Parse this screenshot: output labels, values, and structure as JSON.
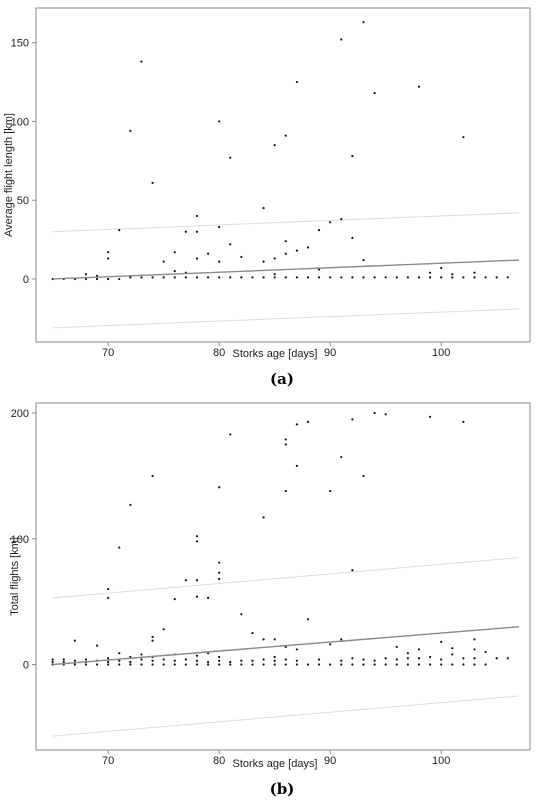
{
  "figure": {
    "panel_labels": [
      "(a)",
      "(b)"
    ]
  },
  "chart_data": [
    {
      "type": "scatter",
      "panel": "(a)",
      "xlabel": "Storks age [days]",
      "ylabel": "Average flight length [km]",
      "xlim": [
        63.5,
        108
      ],
      "ylim": [
        -40,
        172
      ],
      "xticks": [
        70,
        80,
        90,
        100
      ],
      "yticks": [
        0,
        50,
        100,
        150
      ],
      "grid": false,
      "points": [
        [
          65,
          0
        ],
        [
          66,
          0
        ],
        [
          67,
          0
        ],
        [
          68,
          0
        ],
        [
          68,
          3
        ],
        [
          69,
          0
        ],
        [
          69,
          2
        ],
        [
          70,
          0
        ],
        [
          70,
          13
        ],
        [
          70,
          17
        ],
        [
          71,
          0
        ],
        [
          71,
          31
        ],
        [
          72,
          1
        ],
        [
          72,
          94
        ],
        [
          73,
          1
        ],
        [
          73,
          138
        ],
        [
          74,
          1
        ],
        [
          74,
          61
        ],
        [
          75,
          1
        ],
        [
          75,
          11
        ],
        [
          76,
          1
        ],
        [
          76,
          5
        ],
        [
          76,
          17
        ],
        [
          77,
          1
        ],
        [
          77,
          4
        ],
        [
          77,
          30
        ],
        [
          78,
          1
        ],
        [
          78,
          13
        ],
        [
          78,
          30
        ],
        [
          78,
          40
        ],
        [
          79,
          1
        ],
        [
          79,
          16
        ],
        [
          80,
          1
        ],
        [
          80,
          11
        ],
        [
          80,
          33
        ],
        [
          80,
          100
        ],
        [
          81,
          1
        ],
        [
          81,
          22
        ],
        [
          81,
          77
        ],
        [
          82,
          1
        ],
        [
          82,
          14
        ],
        [
          83,
          1
        ],
        [
          84,
          1
        ],
        [
          84,
          11
        ],
        [
          84,
          45
        ],
        [
          85,
          1
        ],
        [
          85,
          3
        ],
        [
          85,
          13
        ],
        [
          85,
          85
        ],
        [
          86,
          1
        ],
        [
          86,
          16
        ],
        [
          86,
          24
        ],
        [
          86,
          91
        ],
        [
          87,
          1
        ],
        [
          87,
          18
        ],
        [
          87,
          125
        ],
        [
          88,
          1
        ],
        [
          88,
          20
        ],
        [
          89,
          1
        ],
        [
          89,
          6
        ],
        [
          89,
          31
        ],
        [
          90,
          1
        ],
        [
          90,
          36
        ],
        [
          91,
          1
        ],
        [
          91,
          38
        ],
        [
          91,
          152
        ],
        [
          92,
          1
        ],
        [
          92,
          26
        ],
        [
          92,
          78
        ],
        [
          93,
          1
        ],
        [
          93,
          12
        ],
        [
          93,
          163
        ],
        [
          94,
          1
        ],
        [
          94,
          118
        ],
        [
          95,
          1
        ],
        [
          96,
          1
        ],
        [
          97,
          1
        ],
        [
          98,
          1
        ],
        [
          98,
          122
        ],
        [
          99,
          1
        ],
        [
          99,
          4
        ],
        [
          100,
          1
        ],
        [
          100,
          7
        ],
        [
          101,
          1
        ],
        [
          101,
          3
        ],
        [
          102,
          1
        ],
        [
          102,
          90
        ],
        [
          103,
          1
        ],
        [
          103,
          4
        ],
        [
          104,
          1
        ],
        [
          105,
          1
        ],
        [
          106,
          1
        ]
      ],
      "fit_line": {
        "x": [
          65,
          107
        ],
        "y": [
          0,
          12
        ]
      },
      "upper_band": {
        "x": [
          65,
          107
        ],
        "y": [
          30,
          42
        ]
      },
      "lower_band": {
        "x": [
          65,
          107
        ],
        "y": [
          -31,
          -19
        ]
      }
    },
    {
      "type": "scatter",
      "panel": "(b)",
      "xlabel": "Storks age [days]",
      "ylabel": "Total flights [km]",
      "xlim": [
        63.5,
        108
      ],
      "ylim": [
        -68,
        208
      ],
      "xticks": [
        70,
        80,
        90,
        100
      ],
      "yticks": [
        0,
        100,
        200
      ],
      "grid": false,
      "points": [
        [
          65,
          0
        ],
        [
          65,
          2
        ],
        [
          65,
          4
        ],
        [
          66,
          0
        ],
        [
          66,
          2
        ],
        [
          66,
          4
        ],
        [
          67,
          0
        ],
        [
          67,
          3
        ],
        [
          67,
          19
        ],
        [
          68,
          0
        ],
        [
          68,
          2
        ],
        [
          68,
          4
        ],
        [
          69,
          0
        ],
        [
          69,
          3
        ],
        [
          69,
          15
        ],
        [
          70,
          0
        ],
        [
          70,
          2
        ],
        [
          70,
          5
        ],
        [
          70,
          53
        ],
        [
          70,
          60
        ],
        [
          71,
          0
        ],
        [
          71,
          3
        ],
        [
          71,
          9
        ],
        [
          71,
          93
        ],
        [
          72,
          0
        ],
        [
          72,
          2
        ],
        [
          72,
          6
        ],
        [
          72,
          127
        ],
        [
          73,
          0
        ],
        [
          73,
          4
        ],
        [
          73,
          8
        ],
        [
          74,
          0
        ],
        [
          74,
          3
        ],
        [
          74,
          6
        ],
        [
          74,
          19
        ],
        [
          74,
          22
        ],
        [
          74,
          150
        ],
        [
          75,
          0
        ],
        [
          75,
          4
        ],
        [
          75,
          28
        ],
        [
          76,
          0
        ],
        [
          76,
          3
        ],
        [
          76,
          8
        ],
        [
          76,
          52
        ],
        [
          77,
          0
        ],
        [
          77,
          4
        ],
        [
          77,
          67
        ],
        [
          78,
          0
        ],
        [
          78,
          3
        ],
        [
          78,
          7
        ],
        [
          78,
          54
        ],
        [
          78,
          67
        ],
        [
          78,
          98
        ],
        [
          78,
          102
        ],
        [
          79,
          0
        ],
        [
          79,
          2
        ],
        [
          79,
          9
        ],
        [
          79,
          53
        ],
        [
          80,
          0
        ],
        [
          80,
          3
        ],
        [
          80,
          6
        ],
        [
          80,
          68
        ],
        [
          80,
          73
        ],
        [
          80,
          81
        ],
        [
          80,
          141
        ],
        [
          81,
          0
        ],
        [
          81,
          2
        ],
        [
          81,
          183
        ],
        [
          82,
          0
        ],
        [
          82,
          3
        ],
        [
          82,
          40
        ],
        [
          83,
          0
        ],
        [
          83,
          3
        ],
        [
          83,
          25
        ],
        [
          84,
          0
        ],
        [
          84,
          4
        ],
        [
          84,
          20
        ],
        [
          84,
          117
        ],
        [
          85,
          0
        ],
        [
          85,
          3
        ],
        [
          85,
          6
        ],
        [
          85,
          20
        ],
        [
          86,
          0
        ],
        [
          86,
          4
        ],
        [
          86,
          14
        ],
        [
          86,
          138
        ],
        [
          86,
          175
        ],
        [
          86,
          179
        ],
        [
          87,
          0
        ],
        [
          87,
          3
        ],
        [
          87,
          12
        ],
        [
          87,
          158
        ],
        [
          87,
          191
        ],
        [
          88,
          0
        ],
        [
          88,
          36
        ],
        [
          88,
          193
        ],
        [
          89,
          0
        ],
        [
          89,
          4
        ],
        [
          90,
          0
        ],
        [
          90,
          16
        ],
        [
          90,
          138
        ],
        [
          91,
          0
        ],
        [
          91,
          3
        ],
        [
          91,
          20
        ],
        [
          91,
          165
        ],
        [
          92,
          0
        ],
        [
          92,
          5
        ],
        [
          92,
          75
        ],
        [
          92,
          195
        ],
        [
          93,
          0
        ],
        [
          93,
          4
        ],
        [
          93,
          150
        ],
        [
          94,
          0
        ],
        [
          94,
          3
        ],
        [
          94,
          200
        ],
        [
          95,
          0
        ],
        [
          95,
          5
        ],
        [
          95,
          199
        ],
        [
          96,
          0
        ],
        [
          96,
          4
        ],
        [
          96,
          14
        ],
        [
          97,
          0
        ],
        [
          97,
          5
        ],
        [
          97,
          9
        ],
        [
          98,
          0
        ],
        [
          98,
          5
        ],
        [
          98,
          12
        ],
        [
          99,
          0
        ],
        [
          99,
          6
        ],
        [
          99,
          197
        ],
        [
          100,
          0
        ],
        [
          100,
          4
        ],
        [
          100,
          18
        ],
        [
          101,
          0
        ],
        [
          101,
          8
        ],
        [
          101,
          13
        ],
        [
          102,
          0
        ],
        [
          102,
          5
        ],
        [
          102,
          193
        ],
        [
          103,
          0
        ],
        [
          103,
          5
        ],
        [
          103,
          12
        ],
        [
          103,
          20
        ],
        [
          104,
          0
        ],
        [
          104,
          10
        ],
        [
          105,
          5
        ],
        [
          106,
          5
        ]
      ],
      "fit_line": {
        "x": [
          65,
          107
        ],
        "y": [
          0,
          30
        ]
      },
      "upper_band": {
        "x": [
          65,
          107
        ],
        "y": [
          53,
          85
        ]
      },
      "lower_band": {
        "x": [
          65,
          107
        ],
        "y": [
          -57,
          -25
        ]
      }
    }
  ]
}
